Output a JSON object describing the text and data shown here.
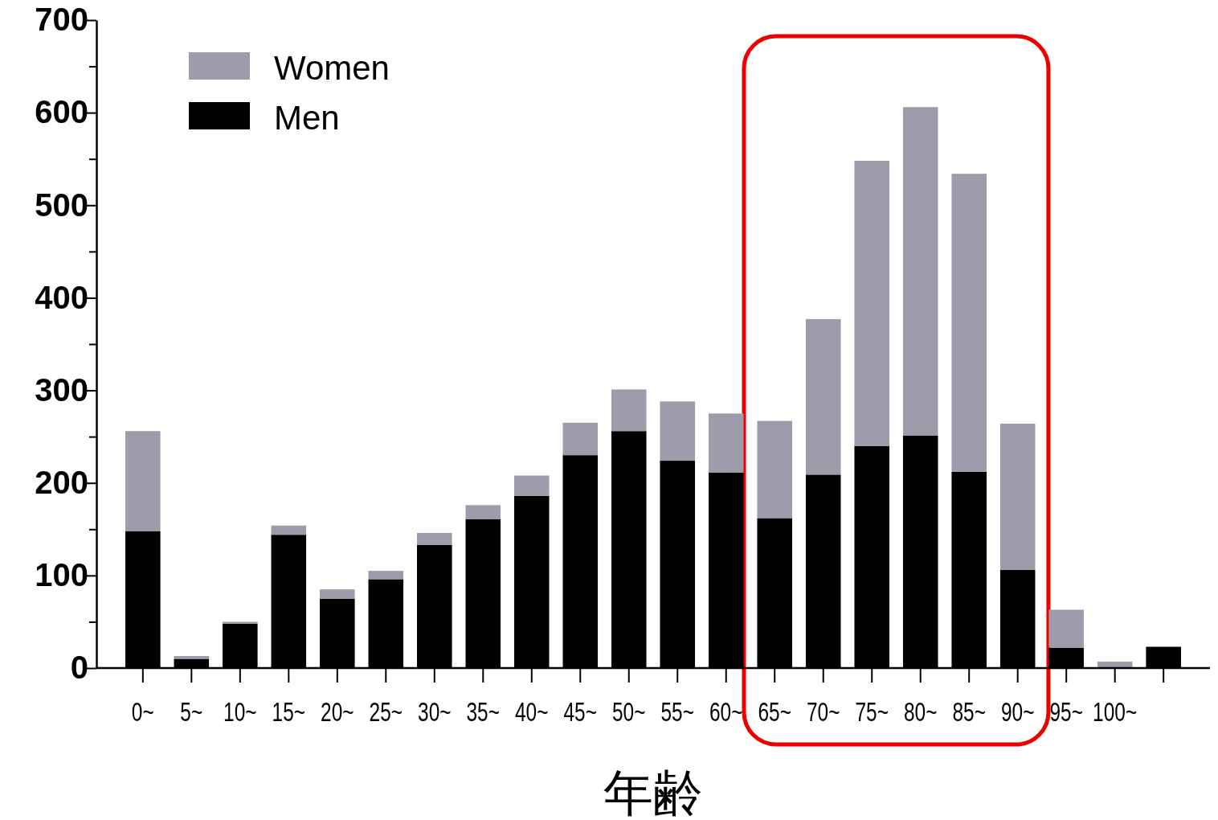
{
  "chart_data": {
    "type": "bar",
    "stacked": true,
    "xlabel": "年齢",
    "categories": [
      "0~",
      "5~",
      "10~",
      "15~",
      "20~",
      "25~",
      "30~",
      "35~",
      "40~",
      "45~",
      "50~",
      "55~",
      "60~",
      "65~",
      "70~",
      "75~",
      "80~",
      "85~",
      "90~",
      "95~",
      "100~",
      null
    ],
    "series": [
      {
        "name": "Men",
        "color": "#000000",
        "values": [
          148,
          10,
          48,
          144,
          75,
          96,
          133,
          161,
          186,
          230,
          256,
          224,
          211,
          162,
          209,
          240,
          251,
          212,
          106,
          22,
          null,
          23
        ]
      },
      {
        "name": "Women",
        "color": "#9c9cab",
        "values": [
          108,
          3,
          2,
          10,
          10,
          9,
          13,
          15,
          22,
          35,
          45,
          64,
          64,
          105,
          168,
          308,
          355,
          322,
          158,
          41,
          7,
          0
        ]
      }
    ],
    "ylim": [
      0,
      700
    ],
    "yticks": [
      0,
      {
        "value": 50,
        "label": null
      },
      100,
      {
        "value": 150,
        "label": null
      },
      200,
      {
        "value": 250,
        "label": null
      },
      300,
      {
        "value": 350,
        "label": null
      },
      400,
      {
        "value": 450,
        "label": null
      },
      500,
      {
        "value": 550,
        "label": null
      },
      600,
      {
        "value": 650,
        "label": null
      },
      700
    ],
    "legend": "top left",
    "grid": false
  }
}
